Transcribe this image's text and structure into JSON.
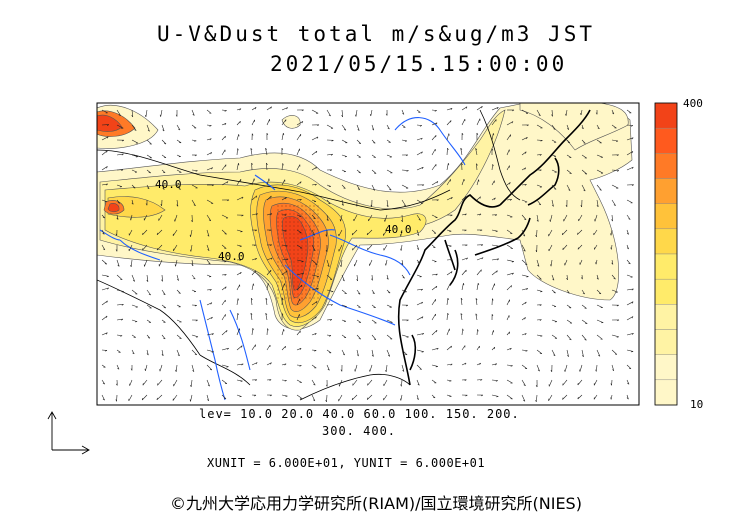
{
  "title": "U-V&Dust total m/s&ug/m3 JST",
  "timestamp": "2021/05/15.15:00:00",
  "levels_line1": "lev= 10.0 20.0 40.0 60.0 100. 150. 200.",
  "levels_line2": "300. 400.",
  "units": "XUNIT = 6.000E+01, YUNIT = 6.000E+01",
  "colorbar": {
    "max_label": "400",
    "min_label": "10"
  },
  "contour_labels": [
    "40.0",
    "40.0",
    "40.0"
  ],
  "credit": "©九州大学応用力学研究所(RIAM)/国立環境研究所(NIES)",
  "colors": {
    "c10": "#fff7c8",
    "c20": "#fff3a4",
    "c40": "#ffeb6a",
    "c60": "#ffd84a",
    "c100": "#ffc23a",
    "c150": "#ffa030",
    "c200": "#ff7a26",
    "c300": "#ff5a1e",
    "c400": "#f24318",
    "water": "#2060ff"
  }
}
